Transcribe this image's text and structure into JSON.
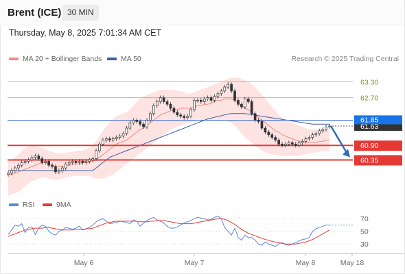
{
  "header": {
    "title": "Brent (ICE)",
    "interval": "30 MIN"
  },
  "datetime": "Thursday, May 8, 2025 7:01:34 AM CET",
  "legend": {
    "bollinger": "MA 20 + Bollinger Bands",
    "ma50": "MA 50",
    "credit": "Research © 2025 Trading Central"
  },
  "rsi_legend": {
    "rsi": "RSI",
    "ma9": "9MA"
  },
  "colors": {
    "bollinger": "#f28b82",
    "ma50": "#3c5ea8",
    "resistance": "#9ccc65",
    "support": "#e53935",
    "pivot": "#3d6fd6",
    "current_price": "#1a73e8",
    "arrow": "#2f6cb3",
    "candle_up": "#ffffff",
    "candle_down": "#333333"
  },
  "chart_data": [
    {
      "type": "candlestick",
      "title": "",
      "x_ticks": [
        "May 6",
        "May 7",
        "May 8",
        "May 18"
      ],
      "levels": [
        {
          "value": 63.3,
          "label": "63.30",
          "kind": "resistance"
        },
        {
          "value": 62.7,
          "label": "62.70",
          "kind": "resistance"
        },
        {
          "value": 61.85,
          "label": "61.85",
          "kind": "pivot"
        },
        {
          "value": 60.9,
          "label": "60.90",
          "kind": "support"
        },
        {
          "value": 60.35,
          "label": "60.35",
          "kind": "support"
        }
      ],
      "current_price_label": "61.63",
      "close": [
        59.85,
        59.95,
        60.05,
        60.15,
        60.25,
        60.3,
        60.35,
        60.45,
        60.5,
        60.4,
        60.25,
        60.3,
        60.15,
        60.1,
        59.9,
        59.95,
        60.05,
        60.2,
        60.25,
        60.3,
        60.25,
        60.3,
        60.25,
        60.3,
        60.35,
        60.4,
        60.7,
        60.95,
        61.1,
        61.15,
        61.1,
        61.15,
        61.2,
        61.25,
        61.35,
        61.55,
        61.75,
        61.85,
        61.8,
        61.7,
        61.6,
        61.85,
        62.1,
        62.4,
        62.55,
        62.7,
        62.55,
        62.45,
        62.3,
        62.15,
        62.05,
        62.0,
        61.95,
        62.0,
        62.25,
        62.6,
        62.6,
        62.55,
        62.65,
        62.7,
        62.6,
        62.75,
        62.85,
        62.95,
        63.1,
        63.2,
        62.95,
        62.6,
        62.45,
        62.35,
        62.65,
        62.55,
        62.1,
        61.85,
        61.8,
        61.55,
        61.4,
        61.3,
        61.2,
        61.1,
        60.95,
        60.9,
        60.95,
        61.0,
        60.95,
        60.9,
        61.0,
        61.05,
        61.15,
        61.2,
        61.3,
        61.35,
        61.45,
        61.5,
        61.6,
        61.63
      ],
      "ma20": [
        59.8,
        59.8,
        59.85,
        59.9,
        59.95,
        60.0,
        60.05,
        60.1,
        60.15,
        60.2,
        60.25,
        60.25,
        60.2,
        60.15,
        60.1,
        60.1,
        60.1,
        60.15,
        60.15,
        60.2,
        60.2,
        60.2,
        60.25,
        60.25,
        60.25,
        60.3,
        60.35,
        60.45,
        60.55,
        60.65,
        60.75,
        60.85,
        60.95,
        61.0,
        61.05,
        61.1,
        61.2,
        61.3,
        61.4,
        61.5,
        61.55,
        61.65,
        61.75,
        61.85,
        61.95,
        62.05,
        62.1,
        62.15,
        62.2,
        62.25,
        62.25,
        62.3,
        62.3,
        62.3,
        62.3,
        62.35,
        62.4,
        62.4,
        62.45,
        62.45,
        62.5,
        62.55,
        62.6,
        62.6,
        62.65,
        62.65,
        62.65,
        62.6,
        62.5,
        62.4,
        62.3,
        62.25,
        62.15,
        62.05,
        61.95,
        61.85,
        61.75,
        61.65,
        61.55,
        61.45,
        61.4,
        61.3,
        61.25,
        61.2,
        61.15,
        61.1,
        61.05,
        61.05,
        61.0,
        61.0,
        61.0,
        61.0,
        61.05,
        61.05,
        61.1,
        61.1
      ],
      "bb_upper": [
        60.3,
        60.35,
        60.45,
        60.55,
        60.7,
        60.8,
        60.85,
        60.9,
        60.9,
        60.85,
        60.8,
        60.75,
        60.7,
        60.65,
        60.6,
        60.6,
        60.6,
        60.6,
        60.65,
        60.65,
        60.7,
        60.7,
        60.7,
        60.75,
        60.8,
        60.9,
        61.05,
        61.25,
        61.45,
        61.6,
        61.75,
        61.9,
        62.0,
        62.05,
        62.1,
        62.15,
        62.25,
        62.4,
        62.55,
        62.65,
        62.75,
        62.8,
        62.85,
        62.9,
        62.95,
        63.0,
        63.0,
        63.0,
        63.0,
        63.0,
        62.95,
        62.95,
        62.9,
        62.85,
        62.85,
        62.9,
        62.95,
        63.0,
        63.05,
        63.1,
        63.15,
        63.2,
        63.25,
        63.3,
        63.35,
        63.4,
        63.45,
        63.45,
        63.45,
        63.4,
        63.35,
        63.3,
        63.2,
        63.1,
        62.95,
        62.8,
        62.65,
        62.5,
        62.35,
        62.2,
        62.05,
        61.95,
        61.85,
        61.8,
        61.75,
        61.7,
        61.65,
        61.6,
        61.55,
        61.5,
        61.5,
        61.5,
        61.5,
        61.5,
        61.5,
        61.5
      ],
      "bb_lower": [
        59.0,
        59.05,
        59.1,
        59.15,
        59.25,
        59.35,
        59.45,
        59.55,
        59.6,
        59.65,
        59.7,
        59.7,
        59.65,
        59.6,
        59.6,
        59.6,
        59.65,
        59.7,
        59.7,
        59.75,
        59.75,
        59.75,
        59.75,
        59.75,
        59.75,
        59.7,
        59.65,
        59.65,
        59.65,
        59.7,
        59.75,
        59.8,
        59.9,
        60.0,
        60.1,
        60.2,
        60.3,
        60.4,
        60.5,
        60.6,
        60.7,
        60.8,
        60.9,
        61.0,
        61.1,
        61.2,
        61.3,
        61.4,
        61.5,
        61.55,
        61.6,
        61.65,
        61.7,
        61.75,
        61.8,
        61.8,
        61.85,
        61.85,
        61.85,
        61.85,
        61.85,
        61.85,
        61.85,
        61.85,
        61.85,
        61.8,
        61.75,
        61.65,
        61.5,
        61.35,
        61.2,
        61.1,
        61.0,
        60.9,
        60.8,
        60.7,
        60.65,
        60.6,
        60.55,
        60.55,
        60.5,
        60.5,
        60.5,
        60.5,
        60.5,
        60.5,
        60.5,
        60.55,
        60.55,
        60.6,
        60.6,
        60.65,
        60.65,
        60.7,
        60.7,
        60.7
      ],
      "ma50": [
        59.95,
        59.95,
        59.95,
        59.95,
        59.95,
        59.95,
        59.95,
        59.95,
        59.95,
        59.95,
        59.95,
        59.95,
        59.95,
        59.95,
        59.95,
        59.95,
        59.95,
        59.95,
        59.95,
        59.95,
        59.95,
        59.95,
        59.95,
        59.95,
        59.95,
        59.95,
        60.05,
        60.15,
        60.25,
        60.35,
        60.45,
        60.5,
        60.55,
        60.6,
        60.65,
        60.7,
        60.75,
        60.8,
        60.85,
        60.9,
        60.95,
        61.0,
        61.05,
        61.1,
        61.15,
        61.2,
        61.25,
        61.3,
        61.35,
        61.4,
        61.45,
        61.5,
        61.55,
        61.6,
        61.65,
        61.7,
        61.75,
        61.8,
        61.85,
        61.9,
        61.93,
        61.96,
        61.99,
        62.02,
        62.05,
        62.08,
        62.1,
        62.1,
        62.1,
        62.1,
        62.1,
        62.08,
        62.06,
        62.04,
        62.02,
        62.0,
        61.98,
        61.96,
        61.94,
        61.92,
        61.9,
        61.88,
        61.86,
        61.84,
        61.82,
        61.8,
        61.78,
        61.76,
        61.74,
        61.72,
        61.7,
        61.7,
        61.7,
        61.7,
        61.7,
        61.7
      ]
    },
    {
      "type": "line",
      "title": "",
      "y_ticks": [
        70,
        50,
        30
      ],
      "series": [
        {
          "name": "RSI",
          "values": [
            45,
            52,
            60,
            58,
            62,
            48,
            56,
            57,
            45,
            55,
            60,
            58,
            50,
            46,
            44,
            50,
            52,
            56,
            55,
            53,
            55,
            58,
            52,
            54,
            56,
            60,
            65,
            68,
            70,
            66,
            62,
            63,
            64,
            66,
            65,
            64,
            62,
            68,
            66,
            58,
            63,
            67,
            70,
            72,
            68,
            66,
            63,
            58,
            55,
            55,
            57,
            60,
            63,
            65,
            67,
            70,
            72,
            71,
            70,
            68,
            69,
            72,
            74,
            70,
            56,
            50,
            44,
            55,
            40,
            36,
            44,
            40,
            40,
            36,
            30,
            28,
            33,
            30,
            28,
            26,
            30,
            32,
            29,
            28,
            30,
            32,
            35,
            37,
            38,
            40,
            50,
            54,
            56,
            58,
            60,
            60
          ]
        },
        {
          "name": "9MA",
          "values": [
            42,
            44,
            46,
            48,
            50,
            52,
            53,
            54,
            55,
            55,
            55,
            56,
            56,
            55,
            54,
            53,
            52,
            52,
            52,
            52,
            53,
            53,
            53,
            54,
            54,
            55,
            57,
            59,
            61,
            63,
            64,
            65,
            66,
            66,
            66,
            66,
            66,
            66,
            66,
            65,
            65,
            65,
            66,
            66,
            67,
            67,
            67,
            66,
            65,
            64,
            63,
            62,
            62,
            62,
            62,
            63,
            64,
            65,
            66,
            67,
            68,
            69,
            70,
            70,
            69,
            67,
            64,
            61,
            57,
            53,
            50,
            47,
            45,
            43,
            41,
            39,
            37,
            36,
            34,
            33,
            32,
            31,
            30,
            30,
            30,
            30,
            31,
            32,
            33,
            35,
            37,
            40,
            43,
            46,
            49,
            52
          ]
        }
      ]
    }
  ]
}
